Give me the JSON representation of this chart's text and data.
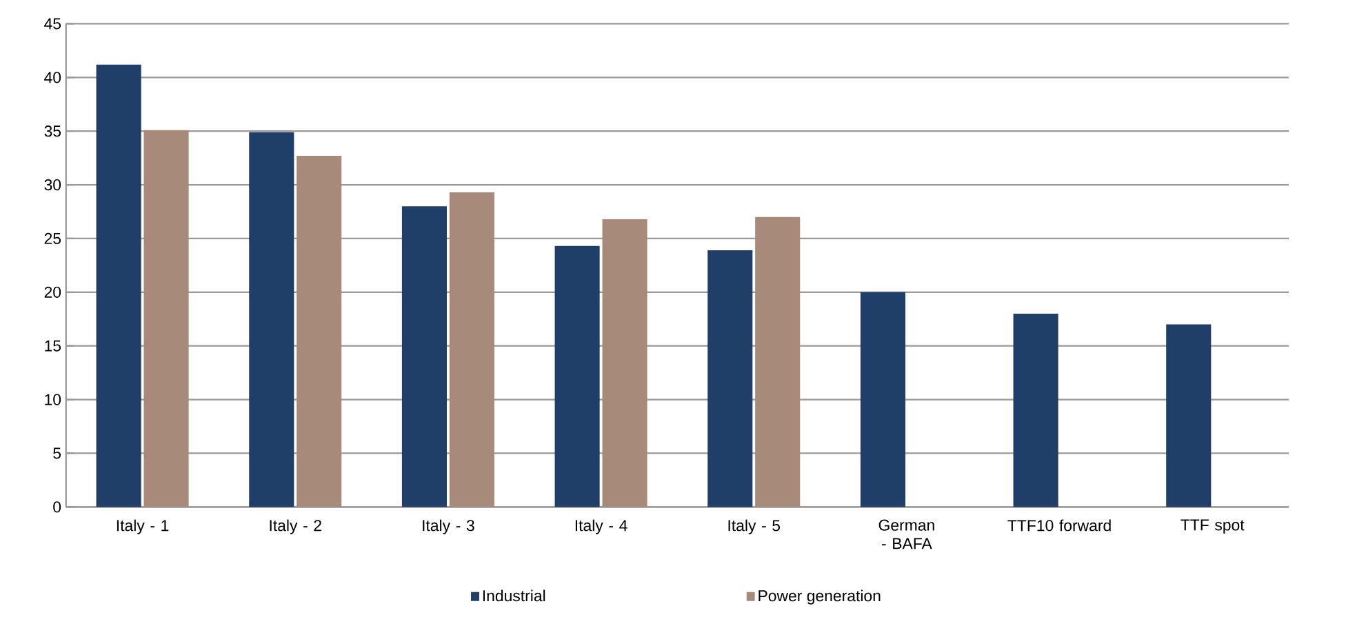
{
  "chart_data": {
    "type": "bar",
    "categories": [
      "Italy - 1",
      "Italy - 2",
      "Italy - 3",
      "Italy - 4",
      "Italy - 5",
      "German - BAFA",
      "TTF10 forward",
      "TTF spot"
    ],
    "series": [
      {
        "name": "Industrial",
        "color": "#1f3f69",
        "values": [
          41.2,
          34.9,
          28.0,
          24.3,
          23.9,
          20.0,
          18.0,
          17.0
        ]
      },
      {
        "name": "Power generation",
        "color": "#a88a7a",
        "values": [
          35.1,
          32.7,
          29.3,
          26.8,
          27.0,
          null,
          null,
          null
        ]
      }
    ],
    "ylim": [
      0,
      45
    ],
    "yticks": [
      0,
      5,
      10,
      15,
      20,
      25,
      30,
      35,
      40,
      45
    ],
    "grid": "y",
    "legend": "bottom"
  }
}
